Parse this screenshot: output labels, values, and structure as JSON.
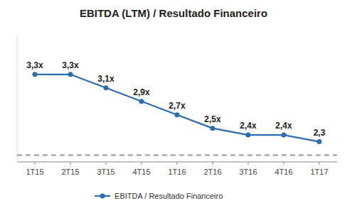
{
  "chart_data": {
    "type": "line",
    "title": "EBITDA (LTM) / Resultado Financeiro",
    "categories": [
      "1T15",
      "2T15",
      "3T15",
      "4T15",
      "1T16",
      "2T16",
      "3T16",
      "4T16",
      "1T17"
    ],
    "series": [
      {
        "name": "EBITDA / Resultado Financeiro",
        "color": "#2b6cb0",
        "marker": "circle",
        "values": [
          3.3,
          3.3,
          3.1,
          2.9,
          2.7,
          2.5,
          2.4,
          2.4,
          2.3
        ],
        "value_labels": [
          "3,3x",
          "3,3x",
          "3,1x",
          "2,9x",
          "2,7x",
          "2,5x",
          "2,4x",
          "2,4x",
          "2,3"
        ]
      }
    ],
    "hline": 2.1,
    "ylim": [
      2.0,
      3.9
    ],
    "data_labels": true,
    "tick_labels": "x",
    "grid": false,
    "legend": "bottom"
  }
}
